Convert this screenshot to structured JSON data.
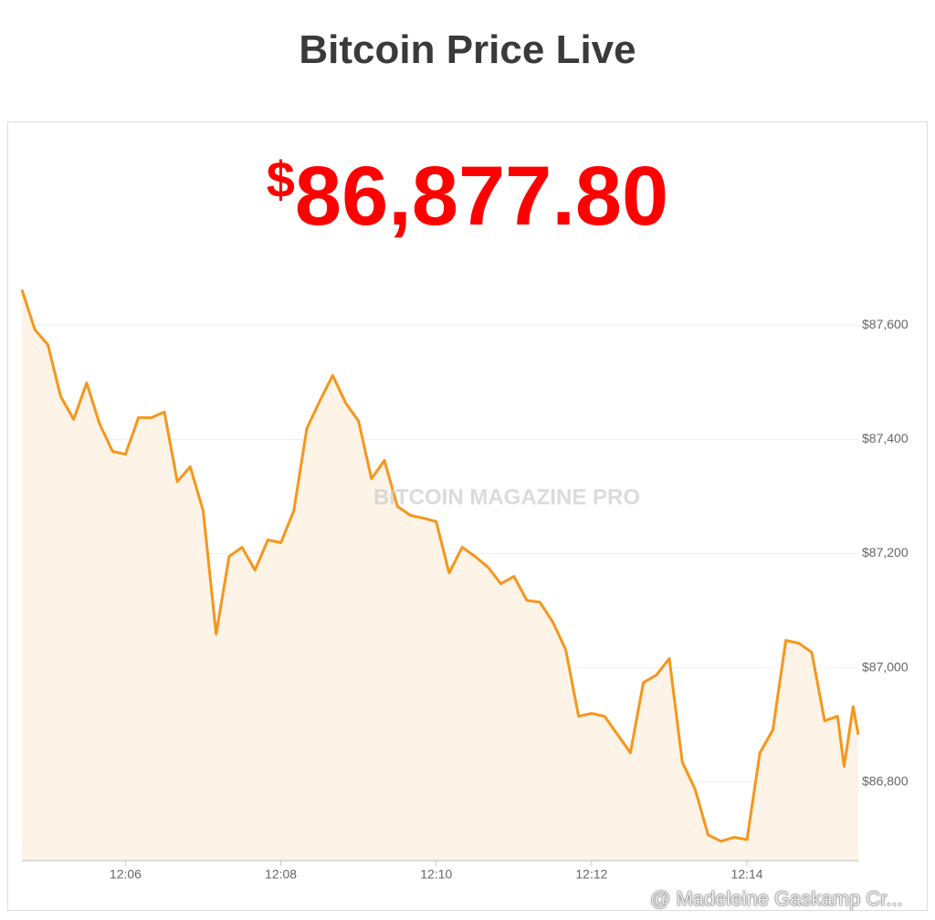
{
  "title": "Bitcoin Price Live",
  "price": {
    "currency": "$",
    "amount": "86,877.80"
  },
  "watermark": "BITCOIN MAGAZINE PRO",
  "credit": "@ Madeleine Gaskamp Cr...",
  "chart_data": {
    "type": "line",
    "color": "#f7961c",
    "fill": "#fdf3e7",
    "grid": true,
    "y_axis_side": "right",
    "x": [
      "12:04:40",
      "12:04:50",
      "12:05:00",
      "12:05:10",
      "12:05:20",
      "12:05:30",
      "12:05:40",
      "12:05:50",
      "12:06:00",
      "12:06:10",
      "12:06:20",
      "12:06:30",
      "12:06:40",
      "12:06:50",
      "12:07:00",
      "12:07:10",
      "12:07:20",
      "12:07:30",
      "12:07:40",
      "12:07:50",
      "12:08:00",
      "12:08:10",
      "12:08:20",
      "12:08:30",
      "12:08:40",
      "12:08:50",
      "12:09:00",
      "12:09:10",
      "12:09:20",
      "12:09:30",
      "12:09:40",
      "12:09:50",
      "12:10:00",
      "12:10:10",
      "12:10:20",
      "12:10:30",
      "12:10:40",
      "12:10:50",
      "12:11:00",
      "12:11:10",
      "12:11:20",
      "12:11:30",
      "12:11:40",
      "12:11:50",
      "12:12:00",
      "12:12:10",
      "12:12:20",
      "12:12:30",
      "12:12:40",
      "12:12:50",
      "12:13:00",
      "12:13:10",
      "12:13:20",
      "12:13:30",
      "12:13:40",
      "12:13:50",
      "12:14:00",
      "12:14:10",
      "12:14:20",
      "12:14:30",
      "12:14:40",
      "12:14:50",
      "12:15:00",
      "12:15:10",
      "12:15:15",
      "12:15:22",
      "12:15:26"
    ],
    "values": [
      87662,
      87592,
      87566,
      87475,
      87435,
      87499,
      87427,
      87379,
      87374,
      87438,
      87438,
      87448,
      87326,
      87352,
      87275,
      87059,
      87195,
      87211,
      87171,
      87224,
      87219,
      87275,
      87419,
      87467,
      87512,
      87464,
      87432,
      87331,
      87363,
      87283,
      87267,
      87262,
      87256,
      87166,
      87211,
      87195,
      87176,
      87147,
      87160,
      87118,
      87115,
      87080,
      87032,
      86915,
      86920,
      86915,
      86883,
      86851,
      86974,
      86987,
      87016,
      86835,
      86787,
      86707,
      86696,
      86703,
      86699,
      86851,
      86891,
      87048,
      87043,
      87027,
      86907,
      86915,
      86827,
      86932,
      86883
    ],
    "xlim": [
      "12:04:40",
      "12:15:26"
    ],
    "xticks": [
      "12:06",
      "12:08",
      "12:10",
      "12:12",
      "12:14"
    ],
    "ylim": [
      86662,
      87690
    ],
    "yticks": [
      {
        "value": 86800,
        "label": "$86,800"
      },
      {
        "value": 87000,
        "label": "$87,000"
      },
      {
        "value": 87200,
        "label": "$87,200"
      },
      {
        "value": 87400,
        "label": "$87,400"
      },
      {
        "value": 87600,
        "label": "$87,600"
      }
    ]
  }
}
